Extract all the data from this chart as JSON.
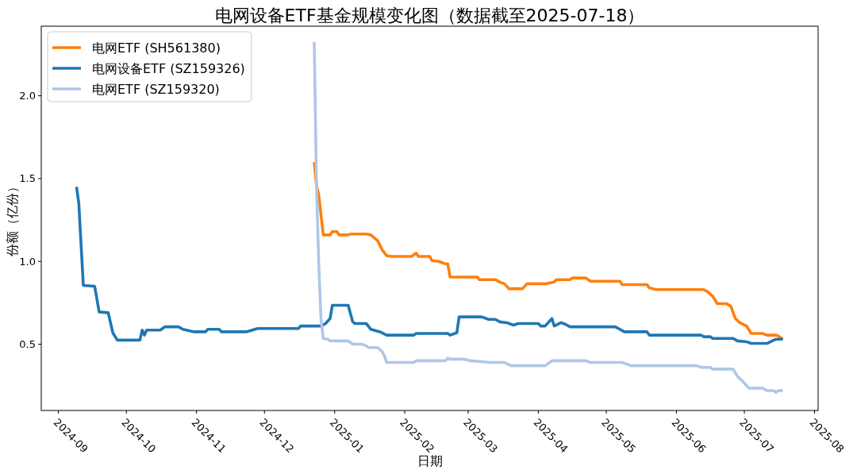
{
  "chart_data": {
    "type": "line",
    "title": "电网设备ETF基金规模变化图（数据截至2025-07-18）",
    "xlabel": "日期",
    "ylabel": "份额（亿份）",
    "xlim": [
      "2024-08-24T10:00",
      "2025-08-02T14:00"
    ],
    "xticks": [
      "2024-09",
      "2024-10",
      "2024-11",
      "2024-12",
      "2025-01",
      "2025-02",
      "2025-03",
      "2025-04",
      "2025-05",
      "2025-06",
      "2025-07",
      "2025-08"
    ],
    "ylim": [
      0.1,
      2.42
    ],
    "yticks": [
      0.5,
      {
        "value": 1,
        "label": "1.0"
      },
      1.5,
      {
        "value": 2,
        "label": "2.0"
      }
    ],
    "legend": "top left",
    "series": [
      {
        "name": "电网ETF (SH561380)",
        "color": "#ff7f0e",
        "x": [
          "2024-12-23",
          "2024-12-24",
          "2024-12-25",
          "2024-12-27",
          "2024-12-30",
          "2024-12-31",
          "2025-01-02",
          "2025-01-03",
          "2025-01-07",
          "2025-01-08",
          "2025-01-15",
          "2025-01-17",
          "2025-01-20",
          "2025-01-22",
          "2025-01-24",
          "2025-01-26",
          "2025-02-04",
          "2025-02-06",
          "2025-02-07",
          "2025-02-12",
          "2025-02-13",
          "2025-02-16",
          "2025-02-19",
          "2025-02-20",
          "2025-02-21",
          "2025-03-05",
          "2025-03-06",
          "2025-03-13",
          "2025-03-15",
          "2025-03-17",
          "2025-03-19",
          "2025-03-25",
          "2025-03-27",
          "2025-04-04",
          "2025-04-08",
          "2025-04-09",
          "2025-04-15",
          "2025-04-16",
          "2025-04-22",
          "2025-04-24",
          "2025-05-07",
          "2025-05-08",
          "2025-05-19",
          "2025-05-20",
          "2025-05-23",
          "2025-06-13",
          "2025-06-15",
          "2025-06-17",
          "2025-06-19",
          "2025-06-23",
          "2025-06-25",
          "2025-06-27",
          "2025-06-29",
          "2025-07-02",
          "2025-07-04",
          "2025-07-09",
          "2025-07-11",
          "2025-07-15",
          "2025-07-16",
          "2025-07-18"
        ],
        "values": [
          1.6,
          1.455,
          1.4,
          1.16,
          1.16,
          1.18,
          1.18,
          1.16,
          1.16,
          1.165,
          1.165,
          1.16,
          1.125,
          1.07,
          1.035,
          1.03,
          1.03,
          1.05,
          1.03,
          1.03,
          1.005,
          1.0,
          0.985,
          0.985,
          0.905,
          0.905,
          0.89,
          0.89,
          0.875,
          0.865,
          0.835,
          0.835,
          0.865,
          0.865,
          0.875,
          0.89,
          0.89,
          0.9,
          0.9,
          0.88,
          0.88,
          0.86,
          0.86,
          0.84,
          0.83,
          0.83,
          0.815,
          0.79,
          0.745,
          0.745,
          0.73,
          0.655,
          0.63,
          0.61,
          0.565,
          0.565,
          0.555,
          0.555,
          0.55,
          0.53
        ]
      },
      {
        "name": "电网设备ETF (SZ159326)",
        "color": "#1f77b4",
        "x": [
          "2024-09-09",
          "2024-09-10",
          "2024-09-12",
          "2024-09-17",
          "2024-09-19",
          "2024-09-23",
          "2024-09-25",
          "2024-09-27",
          "2024-10-07",
          "2024-10-08",
          "2024-10-09",
          "2024-10-10",
          "2024-10-16",
          "2024-10-18",
          "2024-10-24",
          "2024-10-26",
          "2024-10-31",
          "2024-11-05",
          "2024-11-06",
          "2024-11-11",
          "2024-11-12",
          "2024-11-23",
          "2024-11-28",
          "2024-12-16",
          "2024-12-17",
          "2024-12-26",
          "2024-12-28",
          "2024-12-30",
          "2024-12-31",
          "2025-01-07",
          "2025-01-09",
          "2025-01-10",
          "2025-01-15",
          "2025-01-17",
          "2025-01-21",
          "2025-01-24",
          "2025-02-05",
          "2025-02-06",
          "2025-02-20",
          "2025-02-21",
          "2025-02-24",
          "2025-02-25",
          "2025-03-07",
          "2025-03-10",
          "2025-03-13",
          "2025-03-15",
          "2025-03-18",
          "2025-03-21",
          "2025-03-23",
          "2025-04-01",
          "2025-04-02",
          "2025-04-04",
          "2025-04-07",
          "2025-04-08",
          "2025-04-11",
          "2025-04-13",
          "2025-04-15",
          "2025-05-05",
          "2025-05-07",
          "2025-05-09",
          "2025-05-19",
          "2025-05-20",
          "2025-06-12",
          "2025-06-13",
          "2025-06-16",
          "2025-06-17",
          "2025-06-26",
          "2025-06-28",
          "2025-07-02",
          "2025-07-04",
          "2025-07-11",
          "2025-07-14",
          "2025-07-15",
          "2025-07-18"
        ],
        "values": [
          1.45,
          1.35,
          0.855,
          0.85,
          0.695,
          0.69,
          0.57,
          0.525,
          0.525,
          0.585,
          0.555,
          0.585,
          0.585,
          0.605,
          0.605,
          0.59,
          0.575,
          0.575,
          0.59,
          0.59,
          0.575,
          0.575,
          0.595,
          0.595,
          0.61,
          0.61,
          0.625,
          0.655,
          0.735,
          0.735,
          0.635,
          0.625,
          0.625,
          0.59,
          0.575,
          0.555,
          0.555,
          0.565,
          0.565,
          0.555,
          0.57,
          0.665,
          0.665,
          0.65,
          0.65,
          0.635,
          0.63,
          0.615,
          0.625,
          0.625,
          0.61,
          0.61,
          0.655,
          0.61,
          0.63,
          0.62,
          0.605,
          0.605,
          0.59,
          0.575,
          0.575,
          0.555,
          0.555,
          0.545,
          0.545,
          0.535,
          0.535,
          0.52,
          0.515,
          0.505,
          0.505,
          0.525,
          0.53,
          0.53
        ]
      },
      {
        "name": "电网ETF (SZ159320)",
        "color": "#aec7e8",
        "x": [
          "2024-12-23",
          "2024-12-24",
          "2024-12-25",
          "2024-12-26",
          "2024-12-27",
          "2024-12-29",
          "2024-12-30",
          "2025-01-07",
          "2025-01-09",
          "2025-01-13",
          "2025-01-15",
          "2025-01-16",
          "2025-01-20",
          "2025-01-22",
          "2025-01-23",
          "2025-01-24",
          "2025-02-05",
          "2025-02-06",
          "2025-02-19",
          "2025-02-20",
          "2025-02-21",
          "2025-02-27",
          "2025-03-02",
          "2025-03-07",
          "2025-03-10",
          "2025-03-17",
          "2025-03-20",
          "2025-04-04",
          "2025-04-07",
          "2025-04-22",
          "2025-04-24",
          "2025-05-08",
          "2025-05-12",
          "2025-06-10",
          "2025-06-12",
          "2025-06-16",
          "2025-06-17",
          "2025-06-26",
          "2025-06-28",
          "2025-06-30",
          "2025-07-02",
          "2025-07-03",
          "2025-07-09",
          "2025-07-11",
          "2025-07-14",
          "2025-07-15",
          "2025-07-16",
          "2025-07-18"
        ],
        "values": [
          2.325,
          1.46,
          0.98,
          0.65,
          0.535,
          0.53,
          0.52,
          0.52,
          0.5,
          0.5,
          0.49,
          0.48,
          0.48,
          0.455,
          0.43,
          0.39,
          0.39,
          0.4,
          0.4,
          0.415,
          0.41,
          0.41,
          0.4,
          0.395,
          0.39,
          0.39,
          0.37,
          0.37,
          0.4,
          0.4,
          0.39,
          0.39,
          0.37,
          0.37,
          0.36,
          0.36,
          0.35,
          0.35,
          0.305,
          0.28,
          0.25,
          0.235,
          0.235,
          0.22,
          0.22,
          0.21,
          0.22,
          0.22
        ]
      }
    ]
  }
}
